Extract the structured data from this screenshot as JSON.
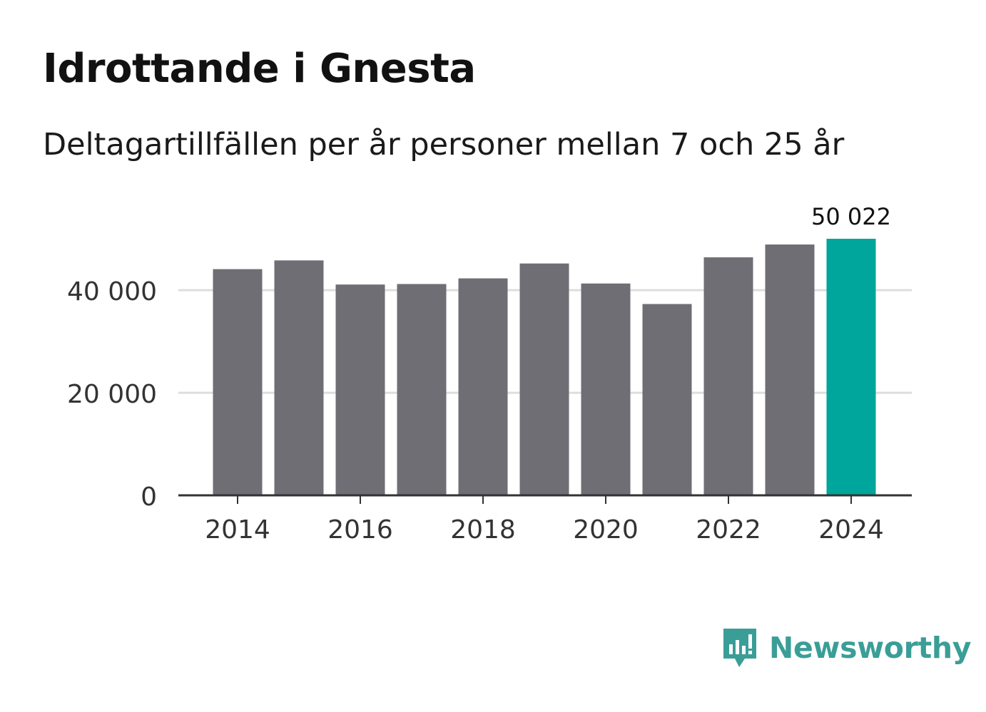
{
  "header": {
    "title": "Idrottande i Gnesta",
    "subtitle": "Deltagartillfällen per år personer mellan 7 och 25 år"
  },
  "chart_data": {
    "type": "bar",
    "title": "Idrottande i Gnesta",
    "subtitle": "Deltagartillfällen per år personer mellan 7 och 25 år",
    "xlabel": "",
    "ylabel": "",
    "categories": [
      "2014",
      "2015",
      "2016",
      "2017",
      "2018",
      "2019",
      "2020",
      "2021",
      "2022",
      "2023",
      "2024"
    ],
    "values": [
      44100,
      45800,
      41100,
      41200,
      42300,
      45200,
      41300,
      37300,
      46400,
      48900,
      50022
    ],
    "ylim": [
      0,
      50022
    ],
    "yticks": [
      0,
      20000,
      40000
    ],
    "ytick_labels": [
      "0",
      "20 000",
      "40 000"
    ],
    "xtick_labels": [
      "2014",
      "2016",
      "2018",
      "2020",
      "2022",
      "2024"
    ],
    "highlight_label": "50 022",
    "highlight_index": 10,
    "grid": true,
    "colors": {
      "bar": "#6f6e74",
      "highlight": "#00a59b",
      "grid": "#dddddd",
      "axis": "#333333",
      "tick_text": "#333333",
      "label_text": "#111111"
    }
  },
  "branding": {
    "logo_icon": "newsworthy-logo-icon",
    "logo_text": "Newsworthy",
    "logo_color": "#3a9e97"
  }
}
